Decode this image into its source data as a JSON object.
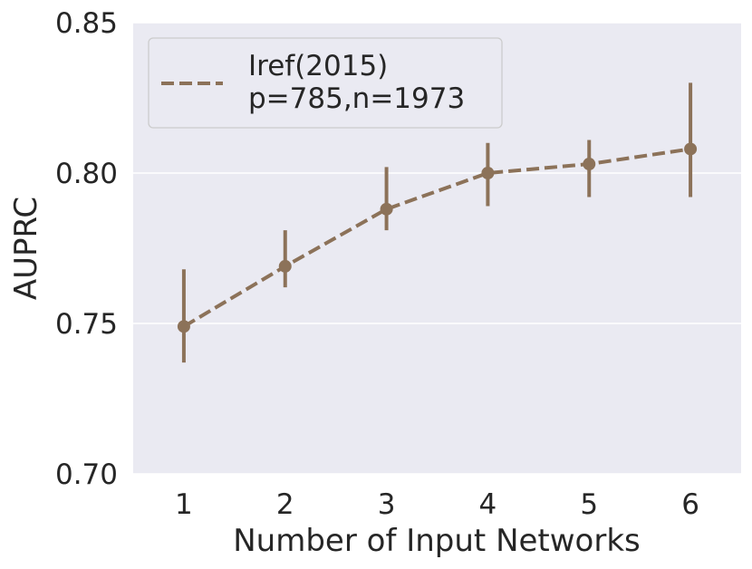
{
  "chart_data": {
    "type": "line",
    "title": "",
    "xlabel": "Number of Input Networks",
    "ylabel": "AUPRC",
    "categories": [
      "1",
      "2",
      "3",
      "4",
      "5",
      "6"
    ],
    "ylim": [
      0.7,
      0.85
    ],
    "yticks": [
      "0.70",
      "0.75",
      "0.80",
      "0.85"
    ],
    "grid": true,
    "legend": {
      "placement": "top-left",
      "lines": [
        "Iref(2015)",
        "p=785,n=1973"
      ]
    },
    "series": [
      {
        "name": "Iref(2015) p=785,n=1973",
        "color": "#8c7259",
        "line_style": "dashed",
        "values": [
          0.749,
          0.769,
          0.788,
          0.8,
          0.803,
          0.808
        ],
        "error_low": [
          0.737,
          0.762,
          0.781,
          0.789,
          0.792,
          0.792
        ],
        "error_high": [
          0.768,
          0.781,
          0.802,
          0.81,
          0.811,
          0.83
        ]
      }
    ]
  }
}
